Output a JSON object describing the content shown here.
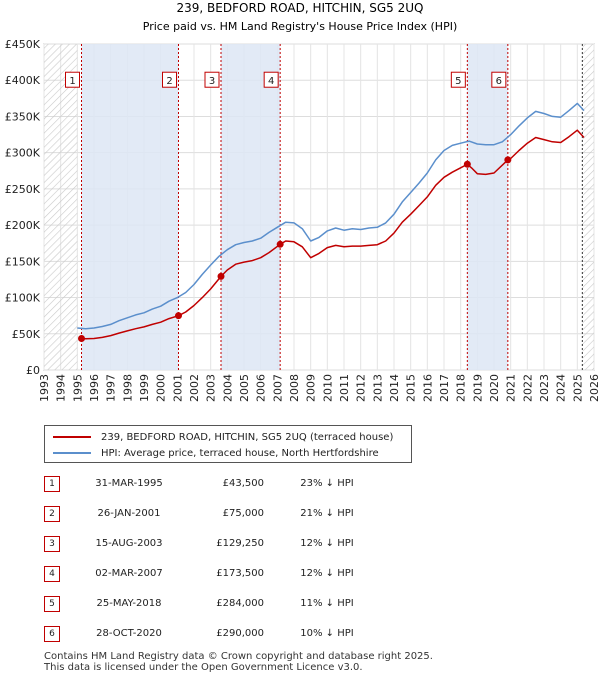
{
  "chart_data": {
    "type": "line",
    "title": "239, BEDFORD ROAD, HITCHIN, SG5 2UQ",
    "subtitle": "Price paid vs. HM Land Registry's House Price Index (HPI)",
    "xlim": [
      1993,
      2026
    ],
    "ylim": [
      0,
      450000
    ],
    "x_ticks": [
      "1993",
      "1994",
      "1995",
      "1996",
      "1997",
      "1998",
      "1999",
      "2000",
      "2001",
      "2002",
      "2003",
      "2004",
      "2005",
      "2006",
      "2007",
      "2008",
      "2009",
      "2010",
      "2011",
      "2012",
      "2013",
      "2014",
      "2015",
      "2016",
      "2017",
      "2018",
      "2019",
      "2020",
      "2021",
      "2022",
      "2023",
      "2024",
      "2025",
      "2026"
    ],
    "y_ticks": [
      {
        "value": 0,
        "label": "£0"
      },
      {
        "value": 50000,
        "label": "£50K"
      },
      {
        "value": 100000,
        "label": "£100K"
      },
      {
        "value": 150000,
        "label": "£150K"
      },
      {
        "value": 200000,
        "label": "£200K"
      },
      {
        "value": 250000,
        "label": "£250K"
      },
      {
        "value": 300000,
        "label": "£300K"
      },
      {
        "value": 350000,
        "label": "£350K"
      },
      {
        "value": 400000,
        "label": "£400K"
      },
      {
        "value": 450000,
        "label": "£450K"
      }
    ],
    "grid": true,
    "shaded_ranges": [
      [
        1995.25,
        2001.07
      ],
      [
        2003.62,
        2007.17
      ],
      [
        2018.4,
        2020.83
      ]
    ],
    "hatched_ranges": [
      [
        1993,
        1995.0
      ],
      [
        2025.3,
        2026
      ]
    ],
    "series": [
      {
        "name": "HPI: Average price, terraced house, North Hertfordshire",
        "color": "#5b8fcc",
        "points": [
          [
            1995.0,
            58000
          ],
          [
            1995.5,
            57000
          ],
          [
            1996.0,
            58000
          ],
          [
            1996.5,
            60000
          ],
          [
            1997.0,
            63000
          ],
          [
            1997.5,
            68000
          ],
          [
            1998.0,
            72000
          ],
          [
            1998.5,
            76000
          ],
          [
            1999.0,
            79000
          ],
          [
            1999.5,
            84000
          ],
          [
            2000.0,
            88000
          ],
          [
            2000.5,
            95000
          ],
          [
            2001.0,
            100000
          ],
          [
            2001.5,
            107000
          ],
          [
            2002.0,
            118000
          ],
          [
            2002.5,
            132000
          ],
          [
            2003.0,
            145000
          ],
          [
            2003.5,
            157000
          ],
          [
            2004.0,
            166000
          ],
          [
            2004.5,
            173000
          ],
          [
            2005.0,
            176000
          ],
          [
            2005.5,
            178000
          ],
          [
            2006.0,
            182000
          ],
          [
            2006.5,
            190000
          ],
          [
            2007.0,
            197000
          ],
          [
            2007.5,
            204000
          ],
          [
            2008.0,
            203000
          ],
          [
            2008.5,
            195000
          ],
          [
            2009.0,
            178000
          ],
          [
            2009.5,
            183000
          ],
          [
            2010.0,
            192000
          ],
          [
            2010.5,
            196000
          ],
          [
            2011.0,
            193000
          ],
          [
            2011.5,
            195000
          ],
          [
            2012.0,
            194000
          ],
          [
            2012.5,
            196000
          ],
          [
            2013.0,
            197000
          ],
          [
            2013.5,
            203000
          ],
          [
            2014.0,
            215000
          ],
          [
            2014.5,
            232000
          ],
          [
            2015.0,
            245000
          ],
          [
            2015.5,
            258000
          ],
          [
            2016.0,
            272000
          ],
          [
            2016.5,
            290000
          ],
          [
            2017.0,
            303000
          ],
          [
            2017.5,
            310000
          ],
          [
            2018.0,
            313000
          ],
          [
            2018.5,
            316000
          ],
          [
            2019.0,
            312000
          ],
          [
            2019.5,
            311000
          ],
          [
            2020.0,
            311000
          ],
          [
            2020.5,
            315000
          ],
          [
            2021.0,
            325000
          ],
          [
            2021.5,
            337000
          ],
          [
            2022.0,
            348000
          ],
          [
            2022.5,
            357000
          ],
          [
            2023.0,
            354000
          ],
          [
            2023.5,
            350000
          ],
          [
            2024.0,
            349000
          ],
          [
            2024.5,
            358000
          ],
          [
            2025.0,
            368000
          ],
          [
            2025.4,
            358000
          ]
        ]
      },
      {
        "name": "239, BEDFORD ROAD, HITCHIN, SG5 2UQ (terraced house)",
        "color": "#c00000",
        "points": [
          [
            1995.25,
            43500
          ],
          [
            1995.5,
            43000
          ],
          [
            1996.0,
            43500
          ],
          [
            1996.5,
            45000
          ],
          [
            1997.0,
            47500
          ],
          [
            1997.5,
            51000
          ],
          [
            1998.0,
            54000
          ],
          [
            1998.5,
            57000
          ],
          [
            1999.0,
            59500
          ],
          [
            1999.5,
            63000
          ],
          [
            2000.0,
            66000
          ],
          [
            2000.5,
            71000
          ],
          [
            2001.07,
            75000
          ],
          [
            2001.5,
            80000
          ],
          [
            2002.0,
            89000
          ],
          [
            2002.5,
            100000
          ],
          [
            2003.0,
            112000
          ],
          [
            2003.62,
            129250
          ],
          [
            2004.0,
            138000
          ],
          [
            2004.5,
            146000
          ],
          [
            2005.0,
            149000
          ],
          [
            2005.5,
            151000
          ],
          [
            2006.0,
            155000
          ],
          [
            2006.5,
            162000
          ],
          [
            2007.17,
            173500
          ],
          [
            2007.5,
            178000
          ],
          [
            2008.0,
            177000
          ],
          [
            2008.5,
            170000
          ],
          [
            2009.0,
            155000
          ],
          [
            2009.5,
            161000
          ],
          [
            2010.0,
            169000
          ],
          [
            2010.5,
            172000
          ],
          [
            2011.0,
            170000
          ],
          [
            2011.5,
            171000
          ],
          [
            2012.0,
            171000
          ],
          [
            2012.5,
            172000
          ],
          [
            2013.0,
            173000
          ],
          [
            2013.5,
            178000
          ],
          [
            2014.0,
            189000
          ],
          [
            2014.5,
            204000
          ],
          [
            2015.0,
            215000
          ],
          [
            2015.5,
            227000
          ],
          [
            2016.0,
            239000
          ],
          [
            2016.5,
            255000
          ],
          [
            2017.0,
            266000
          ],
          [
            2017.5,
            273000
          ],
          [
            2018.4,
            284000
          ],
          [
            2018.7,
            278000
          ],
          [
            2019.0,
            271000
          ],
          [
            2019.5,
            270000
          ],
          [
            2020.0,
            272000
          ],
          [
            2020.83,
            290000
          ],
          [
            2021.0,
            292000
          ],
          [
            2021.5,
            303000
          ],
          [
            2022.0,
            313000
          ],
          [
            2022.5,
            321000
          ],
          [
            2023.0,
            318000
          ],
          [
            2023.5,
            315000
          ],
          [
            2024.0,
            314000
          ],
          [
            2024.5,
            322000
          ],
          [
            2025.0,
            331000
          ],
          [
            2025.4,
            321000
          ]
        ]
      }
    ],
    "sale_markers": [
      {
        "id": "1",
        "x": 1995.25,
        "y": 43500
      },
      {
        "id": "2",
        "x": 2001.07,
        "y": 75000
      },
      {
        "id": "3",
        "x": 2003.62,
        "y": 129250
      },
      {
        "id": "4",
        "x": 2007.17,
        "y": 173500
      },
      {
        "id": "5",
        "x": 2018.4,
        "y": 284000
      },
      {
        "id": "6",
        "x": 2020.83,
        "y": 290000
      }
    ],
    "label_box_y": 400000
  },
  "legend": [
    {
      "label": "239, BEDFORD ROAD, HITCHIN, SG5 2UQ (terraced house)",
      "color": "#c00000"
    },
    {
      "label": "HPI: Average price, terraced house, North Hertfordshire",
      "color": "#5b8fcc"
    }
  ],
  "sales": [
    {
      "num": "1",
      "date": "31-MAR-1995",
      "price": "£43,500",
      "hpi": "23% ↓ HPI"
    },
    {
      "num": "2",
      "date": "26-JAN-2001",
      "price": "£75,000",
      "hpi": "21% ↓ HPI"
    },
    {
      "num": "3",
      "date": "15-AUG-2003",
      "price": "£129,250",
      "hpi": "12% ↓ HPI"
    },
    {
      "num": "4",
      "date": "02-MAR-2007",
      "price": "£173,500",
      "hpi": "12% ↓ HPI"
    },
    {
      "num": "5",
      "date": "25-MAY-2018",
      "price": "£284,000",
      "hpi": "11% ↓ HPI"
    },
    {
      "num": "6",
      "date": "28-OCT-2020",
      "price": "£290,000",
      "hpi": "10% ↓ HPI"
    }
  ],
  "footer": {
    "line1": "Contains HM Land Registry data © Crown copyright and database right 2025.",
    "line2": "This data is licensed under the Open Government Licence v3.0."
  }
}
